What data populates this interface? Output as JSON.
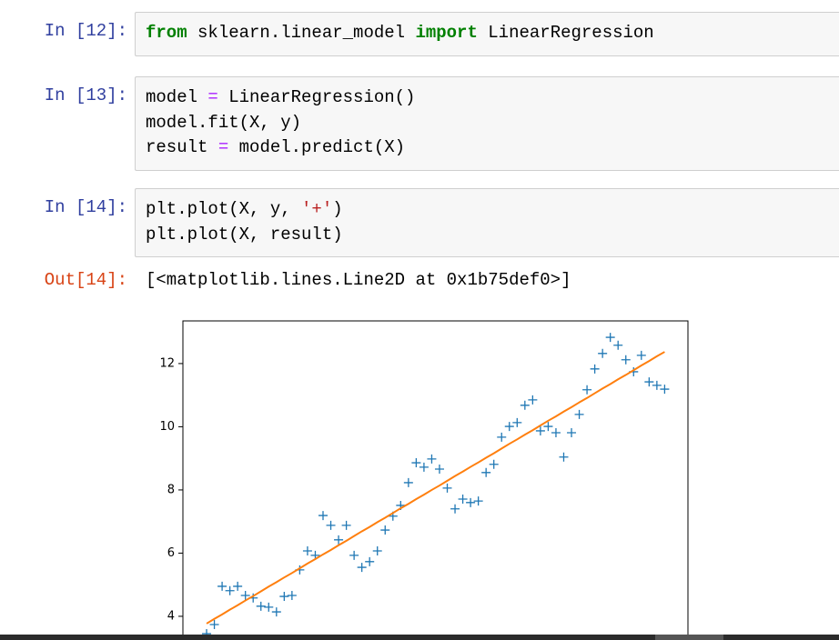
{
  "cells": [
    {
      "prompt": "In [12]:",
      "lines": [
        "from sklearn.linear_model import LinearRegression"
      ]
    },
    {
      "prompt": "In [13]:",
      "lines": [
        "model = LinearRegression()",
        "model.fit(X, y)",
        "result = model.predict(X)"
      ]
    },
    {
      "prompt": "In [14]:",
      "lines": [
        "plt.plot(X, y, '+')",
        "plt.plot(X, result)"
      ]
    }
  ],
  "output": {
    "prompt": "Out[14]:",
    "text": "[<matplotlib.lines.Line2D at 0x1b75def0>]"
  },
  "chart_data": {
    "type": "line",
    "x": [
      0,
      1,
      2,
      3,
      4,
      5,
      6,
      7,
      8,
      9,
      10,
      11,
      12,
      13,
      14,
      15,
      16,
      17,
      18,
      19,
      20,
      21,
      22,
      23,
      24,
      25,
      26,
      27,
      28,
      29,
      30,
      31,
      32,
      33,
      34,
      35,
      36,
      37,
      38,
      39,
      40,
      41,
      42,
      43,
      44,
      45,
      46,
      47,
      48,
      49,
      50,
      51,
      52,
      53,
      54,
      55,
      56,
      57,
      58,
      59
    ],
    "series": [
      {
        "color": "#1f77b4",
        "marker": "+",
        "linestyle": "none",
        "values": [
          3.45,
          3.74,
          4.95,
          4.81,
          4.95,
          4.66,
          4.58,
          4.32,
          4.29,
          4.14,
          4.63,
          4.66,
          5.47,
          6.07,
          5.93,
          7.19,
          6.88,
          6.42,
          6.88,
          5.93,
          5.55,
          5.73,
          6.07,
          6.73,
          7.17,
          7.51,
          8.23,
          8.86,
          8.72,
          8.98,
          8.66,
          8.06,
          7.4,
          7.71,
          7.6,
          7.65,
          8.55,
          8.81,
          9.67,
          10.01,
          10.13,
          10.68,
          10.85,
          9.87,
          10.01,
          9.81,
          9.04,
          9.81,
          10.39,
          11.17,
          11.83,
          12.32,
          12.83,
          12.58,
          12.12,
          11.74,
          12.26,
          11.42,
          11.31,
          11.19
        ]
      },
      {
        "color": "#ff7f0e",
        "linestyle": "solid",
        "values": [
          3.77,
          3.92,
          4.06,
          4.21,
          4.35,
          4.5,
          4.64,
          4.79,
          4.94,
          5.08,
          5.23,
          5.37,
          5.52,
          5.67,
          5.81,
          5.96,
          6.1,
          6.25,
          6.39,
          6.54,
          6.69,
          6.83,
          6.98,
          7.12,
          7.27,
          7.42,
          7.56,
          7.71,
          7.85,
          8.0,
          8.14,
          8.29,
          8.44,
          8.58,
          8.73,
          8.87,
          9.02,
          9.16,
          9.31,
          9.46,
          9.6,
          9.75,
          9.89,
          10.04,
          10.19,
          10.33,
          10.48,
          10.62,
          10.77,
          10.91,
          11.06,
          11.21,
          11.35,
          11.5,
          11.64,
          11.79,
          11.94,
          12.08,
          12.23,
          12.37
        ]
      }
    ],
    "xlim": [
      -3.05,
      62.0
    ],
    "ylim": [
      3.25,
      13.35
    ],
    "yticks": [
      4,
      6,
      8,
      10,
      12
    ]
  }
}
